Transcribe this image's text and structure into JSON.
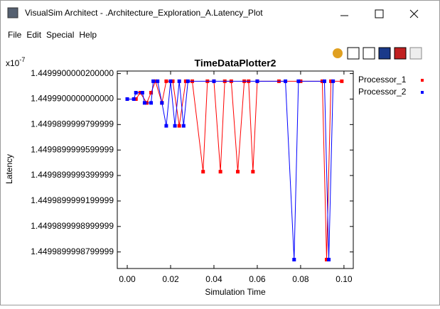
{
  "window": {
    "title": "VisualSim Architect - .Architecture_Exploration_A.Latency_Plot"
  },
  "menu": [
    "File",
    "Edit",
    "Special",
    "Help"
  ],
  "chart_data": {
    "type": "line",
    "title": "TimeDataPlotter2",
    "x_label": "Simulation Time",
    "y_label": "Latency",
    "y_multiplier_base": "x10",
    "y_multiplier_exp": "-7",
    "xlim": [
      -0.0046,
      0.1043
    ],
    "xticks": [
      {
        "value": 0,
        "label": "0.00"
      },
      0.02,
      0.04,
      0.06,
      0.08,
      {
        "value": 0.1,
        "label": "0.10"
      }
    ],
    "ylim": [
      1.449989999867,
      1.449990000022
    ],
    "yticks": [
      {
        "value": 1.44999000002,
        "label": "1.4499900000200000"
      },
      {
        "value": 1.44999,
        "label": "1.4499900000000000"
      },
      {
        "value": 1.44998999998,
        "label": "1.4499899999799999"
      },
      {
        "value": 1.44998999996,
        "label": "1.4499899999599999"
      },
      {
        "value": 1.44998999994,
        "label": "1.4499899999399999"
      },
      {
        "value": 1.44998999992,
        "label": "1.4499899999199999"
      },
      {
        "value": 1.4499899999,
        "label": "1.4499899998999999"
      },
      {
        "value": 1.44998999988,
        "label": "1.4499899998799999"
      }
    ],
    "series": [
      {
        "name": "Processor_1",
        "color": "#ff0000",
        "x": [
          0,
          0.004,
          0.006,
          0.009,
          0.011,
          0.013,
          0.016,
          0.018,
          0.021,
          0.024,
          0.027,
          0.03,
          0.035,
          0.037,
          0.04,
          0.043,
          0.045,
          0.048,
          0.051,
          0.054,
          0.056,
          0.058,
          0.06,
          0.07,
          0.08,
          0.09,
          0.092,
          0.094,
          0.099
        ],
        "values": [
          1.44999,
          1.44999,
          1.449990000005,
          1.449989999997,
          1.449990000005,
          1.449990000014,
          1.449989999997,
          1.449990000014,
          1.449990000014,
          1.449989999979,
          1.449990000014,
          1.449990000014,
          1.449989999943,
          1.449990000014,
          1.449990000014,
          1.449989999943,
          1.449990000014,
          1.449990000014,
          1.449989999943,
          1.449990000014,
          1.449990000014,
          1.449989999943,
          1.449990000014,
          1.449990000014,
          1.449990000014,
          1.449990000014,
          1.449989999874,
          1.449990000014,
          1.449990000014
        ]
      },
      {
        "name": "Processor_2",
        "color": "#0000ff",
        "x": [
          0,
          0.003,
          0.004,
          0.007,
          0.008,
          0.011,
          0.012,
          0.014,
          0.016,
          0.018,
          0.02,
          0.022,
          0.024,
          0.026,
          0.028,
          0.04,
          0.06,
          0.073,
          0.077,
          0.079,
          0.091,
          0.093,
          0.095
        ],
        "values": [
          1.44999,
          1.44999,
          1.449990000005,
          1.449990000005,
          1.449989999997,
          1.449989999997,
          1.449990000014,
          1.449990000014,
          1.449989999997,
          1.449989999979,
          1.449990000014,
          1.449989999979,
          1.449990000014,
          1.449989999979,
          1.449990000014,
          1.449990000014,
          1.449990000014,
          1.449990000014,
          1.449989999874,
          1.449990000014,
          1.449990000014,
          1.449989999874,
          1.449990000014
        ]
      }
    ]
  }
}
